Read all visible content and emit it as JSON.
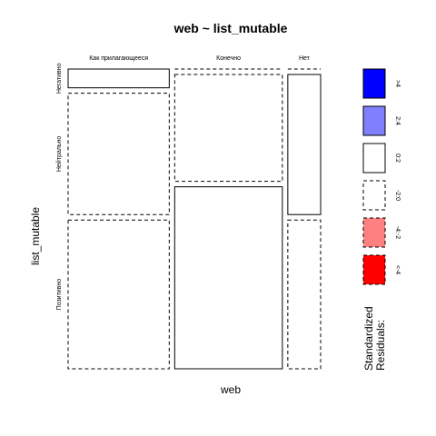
{
  "chart_data": {
    "type": "mosaic",
    "title": "web ~ list_mutable",
    "xlabel": "web",
    "ylabel": "list_mutable",
    "x_categories": [
      "Как прилагающееся",
      "Конечно",
      "Нет"
    ],
    "y_categories": [
      "Негативно",
      "Нейтрально",
      "Позитивно"
    ],
    "column_proportions": [
      0.385,
      0.41,
      0.125
    ],
    "cells": [
      {
        "x": "Как прилагающееся",
        "y": "Негативно",
        "share": 0.065,
        "residual_sign": "positive"
      },
      {
        "x": "Как прилагающееся",
        "y": "Нейтрально",
        "share": 0.42,
        "residual_sign": "negative"
      },
      {
        "x": "Как прилагающееся",
        "y": "Позитивно",
        "share": 0.515,
        "residual_sign": "negative"
      },
      {
        "x": "Конечно",
        "y": "Негативно",
        "share": 0.0,
        "residual_sign": "negative"
      },
      {
        "x": "Конечно",
        "y": "Нейтрально",
        "share": 0.37,
        "residual_sign": "negative"
      },
      {
        "x": "Конечно",
        "y": "Позитивно",
        "share": 0.63,
        "residual_sign": "positive"
      },
      {
        "x": "Нет",
        "y": "Негативно",
        "share": 0.0,
        "residual_sign": "negative"
      },
      {
        "x": "Нет",
        "y": "Нейтрально",
        "share": 0.485,
        "residual_sign": "positive"
      },
      {
        "x": "Нет",
        "y": "Позитивно",
        "share": 0.515,
        "residual_sign": "negative"
      }
    ],
    "legend": {
      "title_line1": "Standardized",
      "title_line2": "Residuals:",
      "items": [
        {
          "label": ">4",
          "fill": "#0000ff",
          "dashed": false
        },
        {
          "label": "2:4",
          "fill": "#8080ff",
          "dashed": false
        },
        {
          "label": "0:2",
          "fill": "#ffffff",
          "dashed": false
        },
        {
          "label": "-2:0",
          "fill": "#ffffff",
          "dashed": true
        },
        {
          "label": "-4:-2",
          "fill": "#ff8080",
          "dashed": true
        },
        {
          "label": "<-4",
          "fill": "#ff0000",
          "dashed": true
        }
      ]
    }
  }
}
